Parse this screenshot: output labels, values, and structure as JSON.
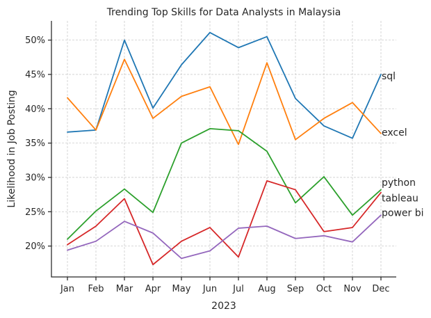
{
  "chart_data": {
    "type": "line",
    "title": "Trending Top Skills for Data Analysts in Malaysia",
    "xlabel": "2023",
    "ylabel": "Likelihood in Job Posting",
    "categories": [
      "Jan",
      "Feb",
      "Mar",
      "Apr",
      "May",
      "Jun",
      "Jul",
      "Aug",
      "Sep",
      "Oct",
      "Nov",
      "Dec"
    ],
    "yticks": [
      20,
      25,
      30,
      35,
      40,
      45,
      50
    ],
    "ytick_labels": [
      "20%",
      "25%",
      "30%",
      "35%",
      "40%",
      "45%",
      "50%"
    ],
    "ylim": [
      15.5,
      52.8
    ],
    "grid": true,
    "series": [
      {
        "name": "sql",
        "color": "#1f77b4",
        "values": [
          36.6,
          36.9,
          50.0,
          40.1,
          46.4,
          51.1,
          48.9,
          50.5,
          41.5,
          37.5,
          35.7,
          45.0
        ]
      },
      {
        "name": "excel",
        "color": "#ff7f0e",
        "values": [
          41.6,
          36.9,
          47.2,
          38.6,
          41.8,
          43.2,
          34.8,
          46.7,
          35.5,
          38.6,
          40.9,
          36.4
        ]
      },
      {
        "name": "python",
        "color": "#2ca02c",
        "values": [
          21.0,
          25.1,
          28.3,
          24.9,
          35.0,
          37.1,
          36.8,
          33.8,
          26.3,
          30.1,
          24.5,
          28.2
        ]
      },
      {
        "name": "tableau",
        "color": "#d62728",
        "values": [
          20.2,
          22.9,
          26.9,
          17.3,
          20.7,
          22.7,
          18.4,
          29.5,
          28.2,
          22.1,
          22.7,
          27.8
        ]
      },
      {
        "name": "power bi",
        "color": "#9467bd",
        "values": [
          19.4,
          20.7,
          23.6,
          21.9,
          18.2,
          19.3,
          22.6,
          22.9,
          21.1,
          21.5,
          20.6,
          24.5
        ]
      }
    ],
    "series_labels": [
      {
        "text": "sql",
        "y": 44.8
      },
      {
        "text": "excel",
        "y": 36.6
      },
      {
        "text": "python",
        "y": 29.3
      },
      {
        "text": "tableau",
        "y": 27.0
      },
      {
        "text": "power bi",
        "y": 24.9
      }
    ]
  }
}
